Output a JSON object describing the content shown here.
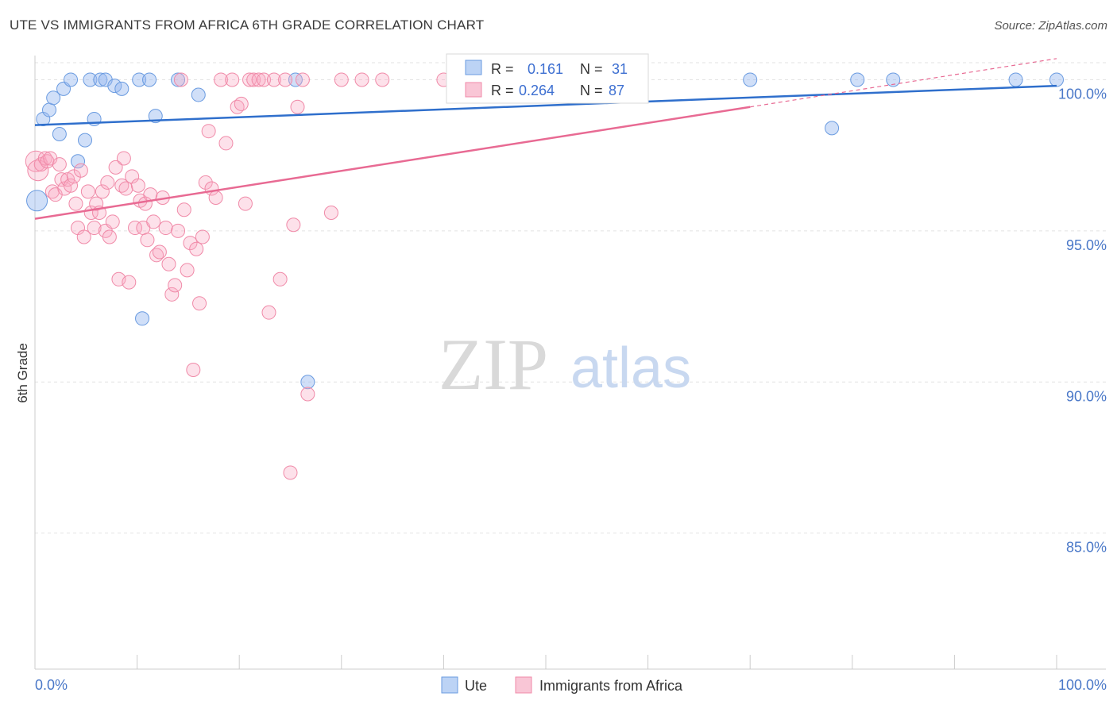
{
  "title": "UTE VS IMMIGRANTS FROM AFRICA 6TH GRADE CORRELATION CHART",
  "source": "Source: ZipAtlas.com",
  "watermark": {
    "zip": "ZIP",
    "atlas": "atlas"
  },
  "chart_data": {
    "type": "scatter",
    "xlabel": "",
    "ylabel": "6th Grade",
    "xlim": [
      0,
      100
    ],
    "ylim": [
      80.5,
      100.8
    ],
    "x_tick_labels": [
      "0.0%",
      "100.0%"
    ],
    "y_ticks": [
      85,
      90,
      95,
      100
    ],
    "y_tick_labels": [
      "85.0%",
      "90.0%",
      "95.0%",
      "100.0%"
    ],
    "grid": true,
    "legend_position": "bottom-center",
    "colors": {
      "ute": "#6a9be0",
      "africa": "#f08aa8",
      "ute_line": "#2f6fcc",
      "africa_line": "#e86a93"
    },
    "stats": [
      {
        "r_label": "R =",
        "r": "0.161",
        "n_label": "N =",
        "n": "31"
      },
      {
        "r_label": "R =",
        "r": "0.264",
        "n_label": "N =",
        "n": "87"
      }
    ],
    "series": [
      {
        "name": "Ute",
        "trend": {
          "x": [
            0,
            100
          ],
          "y": [
            98.5,
            99.8
          ]
        },
        "points": [
          [
            0.2,
            96.0
          ],
          [
            0.8,
            98.7
          ],
          [
            1.4,
            99.0
          ],
          [
            1.8,
            99.4
          ],
          [
            2.4,
            98.2
          ],
          [
            2.8,
            99.7
          ],
          [
            3.5,
            100.0
          ],
          [
            4.2,
            97.3
          ],
          [
            4.9,
            98.0
          ],
          [
            5.4,
            100.0
          ],
          [
            5.8,
            98.7
          ],
          [
            6.4,
            100.0
          ],
          [
            6.9,
            100.0
          ],
          [
            7.8,
            99.8
          ],
          [
            8.5,
            99.7
          ],
          [
            10.2,
            100.0
          ],
          [
            10.5,
            92.1
          ],
          [
            11.2,
            100.0
          ],
          [
            11.8,
            98.8
          ],
          [
            14.0,
            100.0
          ],
          [
            16.0,
            99.5
          ],
          [
            25.5,
            100.0
          ],
          [
            26.7,
            90.0
          ],
          [
            43.0,
            100.0
          ],
          [
            54.0,
            100.0
          ],
          [
            70.0,
            100.0
          ],
          [
            80.5,
            100.0
          ],
          [
            84.0,
            100.0
          ],
          [
            78.0,
            98.4
          ],
          [
            96.0,
            100.0
          ],
          [
            100.0,
            100.0
          ]
        ]
      },
      {
        "name": "Immigrants from Africa",
        "trend": {
          "x": [
            0,
            70
          ],
          "y": [
            95.4,
            99.1
          ]
        },
        "trend_dashed": {
          "x": [
            70,
            100
          ],
          "y": [
            99.1,
            100.7
          ]
        },
        "points": [
          [
            0.1,
            97.3
          ],
          [
            0.3,
            97.0
          ],
          [
            0.6,
            97.2
          ],
          [
            1.0,
            97.4
          ],
          [
            1.2,
            97.3
          ],
          [
            1.5,
            97.4
          ],
          [
            1.7,
            96.3
          ],
          [
            2.0,
            96.2
          ],
          [
            2.4,
            97.2
          ],
          [
            2.6,
            96.7
          ],
          [
            2.9,
            96.4
          ],
          [
            3.2,
            96.7
          ],
          [
            3.5,
            96.5
          ],
          [
            3.8,
            96.8
          ],
          [
            4.0,
            95.9
          ],
          [
            4.2,
            95.1
          ],
          [
            4.5,
            97.0
          ],
          [
            4.8,
            94.8
          ],
          [
            5.2,
            96.3
          ],
          [
            5.5,
            95.6
          ],
          [
            5.8,
            95.1
          ],
          [
            6.0,
            95.9
          ],
          [
            6.3,
            95.6
          ],
          [
            6.6,
            96.3
          ],
          [
            6.9,
            95.0
          ],
          [
            7.1,
            96.6
          ],
          [
            7.3,
            94.8
          ],
          [
            7.6,
            95.3
          ],
          [
            7.9,
            97.1
          ],
          [
            8.2,
            93.4
          ],
          [
            8.5,
            96.5
          ],
          [
            8.7,
            97.4
          ],
          [
            8.9,
            96.4
          ],
          [
            9.2,
            93.3
          ],
          [
            9.5,
            96.8
          ],
          [
            9.8,
            95.1
          ],
          [
            10.1,
            96.5
          ],
          [
            10.3,
            96.0
          ],
          [
            10.6,
            95.1
          ],
          [
            10.8,
            95.9
          ],
          [
            11.0,
            94.7
          ],
          [
            11.3,
            96.2
          ],
          [
            11.6,
            95.3
          ],
          [
            11.9,
            94.2
          ],
          [
            12.2,
            94.3
          ],
          [
            12.5,
            96.1
          ],
          [
            12.8,
            95.1
          ],
          [
            13.1,
            93.9
          ],
          [
            13.4,
            92.9
          ],
          [
            13.7,
            93.2
          ],
          [
            14.0,
            95.0
          ],
          [
            14.3,
            100.0
          ],
          [
            14.6,
            95.7
          ],
          [
            14.9,
            93.7
          ],
          [
            15.2,
            94.6
          ],
          [
            15.5,
            90.4
          ],
          [
            15.8,
            94.4
          ],
          [
            16.1,
            92.6
          ],
          [
            16.4,
            94.8
          ],
          [
            16.7,
            96.6
          ],
          [
            17.0,
            98.3
          ],
          [
            17.3,
            96.4
          ],
          [
            17.7,
            96.1
          ],
          [
            18.2,
            100.0
          ],
          [
            18.7,
            97.9
          ],
          [
            19.3,
            100.0
          ],
          [
            19.8,
            99.1
          ],
          [
            20.2,
            99.2
          ],
          [
            20.6,
            95.9
          ],
          [
            21.0,
            100.0
          ],
          [
            21.4,
            100.0
          ],
          [
            21.9,
            100.0
          ],
          [
            22.4,
            100.0
          ],
          [
            22.9,
            92.3
          ],
          [
            23.4,
            100.0
          ],
          [
            24.0,
            93.4
          ],
          [
            24.5,
            100.0
          ],
          [
            25.0,
            87.0
          ],
          [
            25.3,
            95.2
          ],
          [
            25.7,
            99.1
          ],
          [
            26.2,
            100.0
          ],
          [
            26.7,
            89.6
          ],
          [
            29.0,
            95.6
          ],
          [
            30.0,
            100.0
          ],
          [
            32.0,
            100.0
          ],
          [
            34.0,
            100.0
          ],
          [
            40.0,
            100.0
          ]
        ]
      }
    ]
  }
}
